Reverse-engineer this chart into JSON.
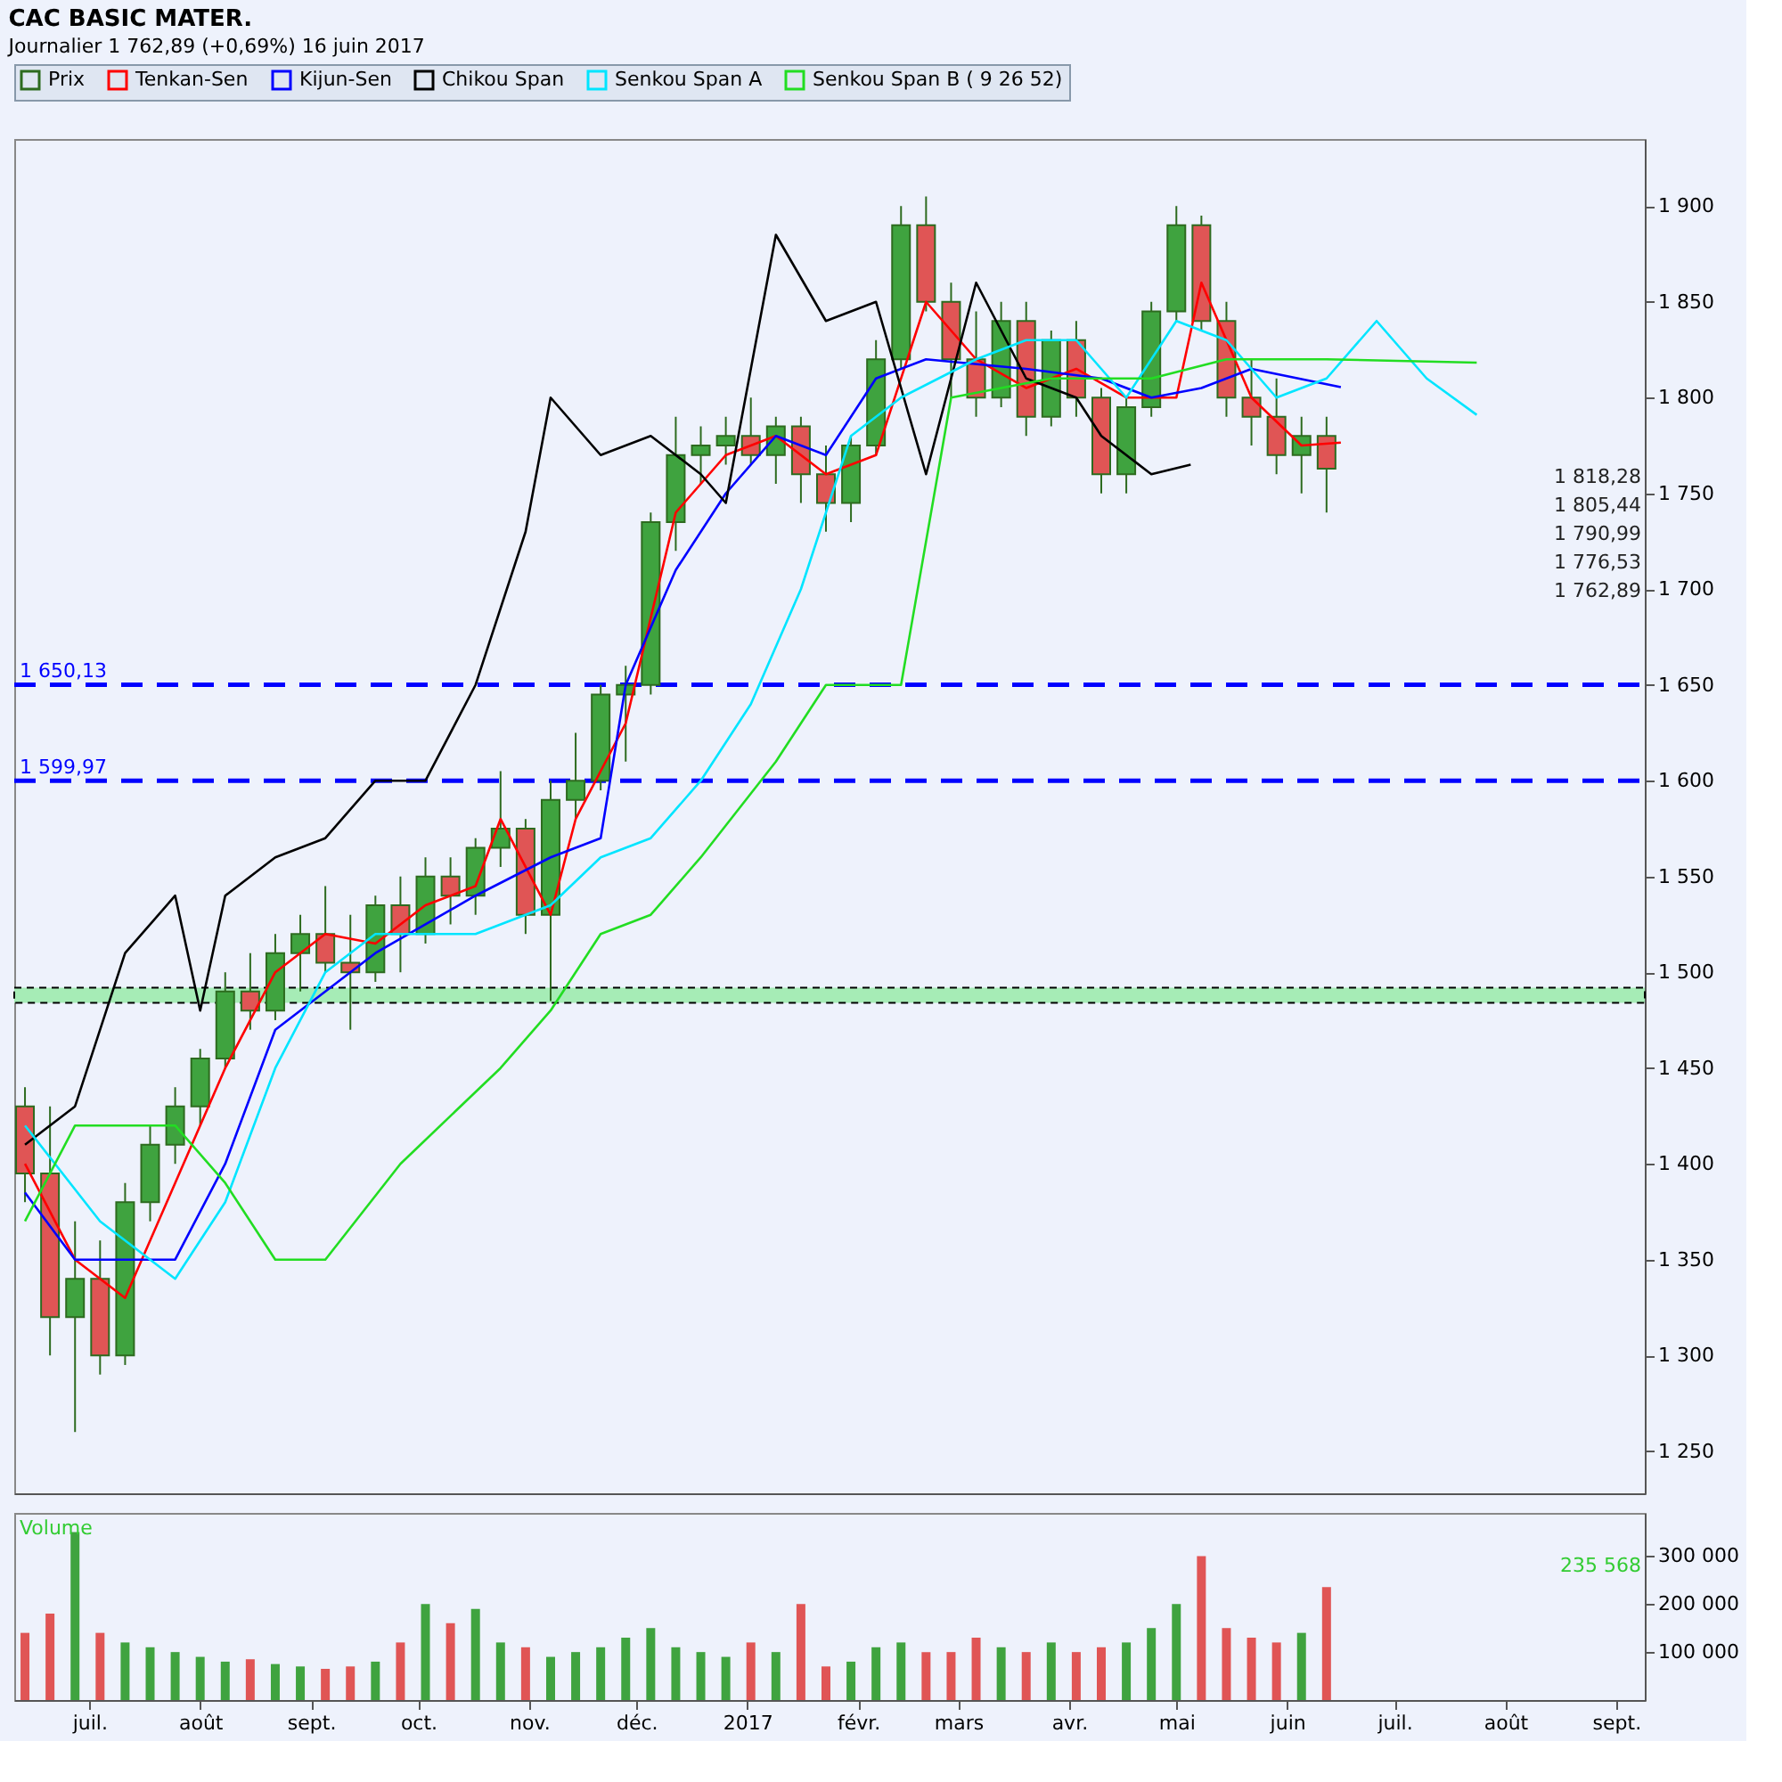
{
  "chart_data": [
    {
      "type": "candlestick",
      "title": "CAC BASIC MATER.",
      "subtitle": "Journalier   1 762,89 (+0,69%)   16 juin 2017",
      "series": [
        {
          "name": "Prix",
          "type": "candlestick",
          "color": "#2d6b1f",
          "x": [
            "2016-06-13",
            "2016-06-20",
            "2016-06-27",
            "2016-07-04",
            "2016-07-11",
            "2016-07-18",
            "2016-07-25",
            "2016-08-01",
            "2016-08-08",
            "2016-08-15",
            "2016-08-22",
            "2016-08-29",
            "2016-09-05",
            "2016-09-12",
            "2016-09-19",
            "2016-09-26",
            "2016-10-03",
            "2016-10-10",
            "2016-10-17",
            "2016-10-24",
            "2016-10-31",
            "2016-11-07",
            "2016-11-14",
            "2016-11-21",
            "2016-11-28",
            "2016-12-05",
            "2016-12-12",
            "2016-12-19",
            "2016-12-26",
            "2017-01-02",
            "2017-01-09",
            "2017-01-16",
            "2017-01-23",
            "2017-01-30",
            "2017-02-06",
            "2017-02-13",
            "2017-02-20",
            "2017-02-27",
            "2017-03-06",
            "2017-03-13",
            "2017-03-20",
            "2017-03-27",
            "2017-04-03",
            "2017-04-10",
            "2017-04-17",
            "2017-04-24",
            "2017-05-01",
            "2017-05-08",
            "2017-05-15",
            "2017-05-22",
            "2017-05-29",
            "2017-06-05",
            "2017-06-12"
          ],
          "ohlc": [
            [
              1430,
              1440,
              1380,
              1395
            ],
            [
              1395,
              1430,
              1300,
              1320
            ],
            [
              1320,
              1370,
              1260,
              1340
            ],
            [
              1340,
              1360,
              1290,
              1300
            ],
            [
              1300,
              1390,
              1295,
              1380
            ],
            [
              1380,
              1420,
              1370,
              1410
            ],
            [
              1410,
              1440,
              1400,
              1430
            ],
            [
              1430,
              1460,
              1420,
              1455
            ],
            [
              1455,
              1500,
              1450,
              1490
            ],
            [
              1490,
              1510,
              1470,
              1480
            ],
            [
              1480,
              1520,
              1475,
              1510
            ],
            [
              1510,
              1530,
              1490,
              1520
            ],
            [
              1520,
              1545,
              1500,
              1505
            ],
            [
              1505,
              1530,
              1470,
              1500
            ],
            [
              1500,
              1540,
              1495,
              1535
            ],
            [
              1535,
              1550,
              1500,
              1520
            ],
            [
              1520,
              1560,
              1515,
              1550
            ],
            [
              1550,
              1560,
              1525,
              1540
            ],
            [
              1540,
              1570,
              1530,
              1565
            ],
            [
              1565,
              1605,
              1555,
              1575
            ],
            [
              1575,
              1580,
              1520,
              1530
            ],
            [
              1530,
              1600,
              1485,
              1590
            ],
            [
              1590,
              1625,
              1580,
              1600
            ],
            [
              1600,
              1650,
              1595,
              1645
            ],
            [
              1645,
              1660,
              1610,
              1650
            ],
            [
              1650,
              1740,
              1645,
              1735
            ],
            [
              1735,
              1790,
              1720,
              1770
            ],
            [
              1770,
              1785,
              1755,
              1775
            ],
            [
              1775,
              1790,
              1765,
              1780
            ],
            [
              1780,
              1800,
              1765,
              1770
            ],
            [
              1770,
              1790,
              1755,
              1785
            ],
            [
              1785,
              1790,
              1745,
              1760
            ],
            [
              1760,
              1775,
              1730,
              1745
            ],
            [
              1745,
              1780,
              1735,
              1775
            ],
            [
              1775,
              1830,
              1770,
              1820
            ],
            [
              1820,
              1900,
              1815,
              1890
            ],
            [
              1890,
              1905,
              1845,
              1850
            ],
            [
              1850,
              1860,
              1800,
              1820
            ],
            [
              1820,
              1845,
              1790,
              1800
            ],
            [
              1800,
              1850,
              1795,
              1840
            ],
            [
              1840,
              1850,
              1780,
              1790
            ],
            [
              1790,
              1835,
              1785,
              1830
            ],
            [
              1830,
              1840,
              1790,
              1800
            ],
            [
              1800,
              1805,
              1750,
              1760
            ],
            [
              1760,
              1800,
              1750,
              1795
            ],
            [
              1795,
              1850,
              1790,
              1845
            ],
            [
              1845,
              1900,
              1840,
              1890
            ],
            [
              1890,
              1895,
              1835,
              1840
            ],
            [
              1840,
              1850,
              1790,
              1800
            ],
            [
              1800,
              1820,
              1775,
              1790
            ],
            [
              1790,
              1810,
              1760,
              1770
            ],
            [
              1770,
              1790,
              1750,
              1780
            ],
            [
              1780,
              1790,
              1740,
              1762.89
            ]
          ],
          "colors": [
            "#e05555",
            "#e05555",
            "#3fa33f",
            "#e05555",
            "#3fa33f",
            "#3fa33f",
            "#3fa33f",
            "#3fa33f",
            "#3fa33f",
            "#e05555",
            "#3fa33f",
            "#3fa33f",
            "#e05555",
            "#e05555",
            "#3fa33f",
            "#e05555",
            "#3fa33f",
            "#e05555",
            "#3fa33f",
            "#3fa33f",
            "#e05555",
            "#3fa33f",
            "#3fa33f",
            "#3fa33f",
            "#3fa33f",
            "#3fa33f",
            "#3fa33f",
            "#3fa33f",
            "#3fa33f",
            "#e05555",
            "#3fa33f",
            "#e05555",
            "#e05555",
            "#3fa33f",
            "#3fa33f",
            "#3fa33f",
            "#e05555",
            "#e05555",
            "#e05555",
            "#3fa33f",
            "#e05555",
            "#3fa33f",
            "#e05555",
            "#e05555",
            "#3fa33f",
            "#3fa33f",
            "#3fa33f",
            "#e05555",
            "#e05555",
            "#e05555",
            "#e05555",
            "#3fa33f",
            "#e05555"
          ]
        },
        {
          "name": "Tenkan-Sen",
          "type": "line",
          "color": "#ff0000",
          "x": [
            "2016-06-13",
            "2016-06-27",
            "2016-07-11",
            "2016-07-25",
            "2016-08-08",
            "2016-08-22",
            "2016-09-05",
            "2016-09-19",
            "2016-10-03",
            "2016-10-17",
            "2016-10-24",
            "2016-11-07",
            "2016-11-14",
            "2016-11-28",
            "2016-12-12",
            "2016-12-26",
            "2017-01-09",
            "2017-01-23",
            "2017-02-06",
            "2017-02-20",
            "2017-03-06",
            "2017-03-20",
            "2017-04-03",
            "2017-04-17",
            "2017-05-01",
            "2017-05-08",
            "2017-05-22",
            "2017-06-05",
            "2017-06-16"
          ],
          "values": [
            1400,
            1350,
            1330,
            1390,
            1450,
            1500,
            1520,
            1515,
            1535,
            1545,
            1580,
            1530,
            1580,
            1630,
            1740,
            1770,
            1780,
            1760,
            1770,
            1850,
            1820,
            1805,
            1815,
            1800,
            1800,
            1860,
            1800,
            1775,
            1776.53
          ]
        },
        {
          "name": "Kijun-Sen",
          "type": "line",
          "color": "#0000ff",
          "x": [
            "2016-06-13",
            "2016-06-27",
            "2016-07-25",
            "2016-08-08",
            "2016-08-22",
            "2016-09-19",
            "2016-10-17",
            "2016-11-07",
            "2016-11-21",
            "2016-11-28",
            "2016-12-12",
            "2016-12-26",
            "2017-01-09",
            "2017-01-23",
            "2017-02-06",
            "2017-02-20",
            "2017-03-20",
            "2017-04-10",
            "2017-04-24",
            "2017-05-08",
            "2017-05-22",
            "2017-06-16"
          ],
          "values": [
            1385,
            1350,
            1350,
            1400,
            1470,
            1510,
            1540,
            1560,
            1570,
            1650,
            1710,
            1750,
            1780,
            1770,
            1810,
            1820,
            1815,
            1810,
            1800,
            1805,
            1815,
            1805.44
          ]
        },
        {
          "name": "Chikou Span",
          "type": "line",
          "color": "#000000",
          "x": [
            "2016-06-13",
            "2016-06-27",
            "2016-07-11",
            "2016-07-25",
            "2016-08-01",
            "2016-08-08",
            "2016-08-22",
            "2016-09-05",
            "2016-09-19",
            "2016-10-03",
            "2016-10-17",
            "2016-10-31",
            "2016-11-07",
            "2016-11-21",
            "2016-12-05",
            "2016-12-19",
            "2016-12-26",
            "2017-01-09",
            "2017-01-23",
            "2017-02-06",
            "2017-02-20",
            "2017-03-06",
            "2017-03-20",
            "2017-04-03",
            "2017-04-10",
            "2017-04-24",
            "2017-05-05"
          ],
          "values": [
            1410,
            1430,
            1510,
            1540,
            1480,
            1540,
            1560,
            1570,
            1600,
            1600,
            1650,
            1730,
            1800,
            1770,
            1780,
            1760,
            1745,
            1885,
            1840,
            1850,
            1760,
            1860,
            1810,
            1800,
            1780,
            1760,
            1765
          ]
        },
        {
          "name": "Senkou Span A",
          "type": "line",
          "color": "#00e5ff",
          "x": [
            "2016-06-13",
            "2016-07-04",
            "2016-07-25",
            "2016-08-08",
            "2016-08-22",
            "2016-09-05",
            "2016-09-19",
            "2016-10-17",
            "2016-11-07",
            "2016-11-21",
            "2016-12-05",
            "2016-12-19",
            "2017-01-02",
            "2017-01-16",
            "2017-01-30",
            "2017-02-13",
            "2017-03-06",
            "2017-03-20",
            "2017-04-03",
            "2017-04-17",
            "2017-05-01",
            "2017-05-15",
            "2017-05-29",
            "2017-06-12",
            "2017-06-26",
            "2017-07-10",
            "2017-07-24"
          ],
          "values": [
            1420,
            1370,
            1340,
            1380,
            1450,
            1500,
            1520,
            1520,
            1535,
            1560,
            1570,
            1600,
            1640,
            1700,
            1780,
            1800,
            1820,
            1830,
            1830,
            1800,
            1840,
            1830,
            1800,
            1810,
            1840,
            1810,
            1790.99
          ]
        },
        {
          "name": "Senkou Span B ( 9 26 52)",
          "type": "line",
          "color": "#22dd22",
          "x": [
            "2016-06-13",
            "2016-06-27",
            "2016-07-25",
            "2016-08-08",
            "2016-08-22",
            "2016-09-05",
            "2016-09-26",
            "2016-10-24",
            "2016-11-07",
            "2016-11-21",
            "2016-12-05",
            "2016-12-19",
            "2017-01-09",
            "2017-01-23",
            "2017-02-13",
            "2017-02-27",
            "2017-03-27",
            "2017-04-24",
            "2017-05-15",
            "2017-06-12",
            "2017-07-24"
          ],
          "values": [
            1370,
            1420,
            1420,
            1390,
            1350,
            1350,
            1400,
            1450,
            1480,
            1520,
            1530,
            1560,
            1610,
            1650,
            1650,
            1800,
            1810,
            1810,
            1820,
            1820,
            1818.28
          ]
        }
      ],
      "xlim": [
        "2016-06-10",
        "2017-09-09"
      ],
      "ylim": [
        1228,
        1935
      ],
      "yticks": [
        {
          "value": 1250,
          "label": "1 250"
        },
        {
          "value": 1300,
          "label": "1 300"
        },
        {
          "value": 1350,
          "label": "1 350"
        },
        {
          "value": 1400,
          "label": "1 400"
        },
        {
          "value": 1450,
          "label": "1 450"
        },
        {
          "value": 1500,
          "label": "1 500"
        },
        {
          "value": 1550,
          "label": "1 550"
        },
        {
          "value": 1600,
          "label": "1 600"
        },
        {
          "value": 1650,
          "label": "1 650"
        },
        {
          "value": 1700,
          "label": "1 700"
        },
        {
          "value": 1750,
          "label": "1 750"
        },
        {
          "value": 1800,
          "label": "1 800"
        },
        {
          "value": 1850,
          "label": "1 850"
        },
        {
          "value": 1900,
          "label": "1 900"
        }
      ],
      "ref_lines": [
        {
          "axis": "y",
          "value": 1650.13,
          "label": "1 650,13",
          "color": "#0000ff",
          "line_style": "dashed"
        },
        {
          "axis": "y",
          "value": 1599.97,
          "label": "1 599,97",
          "color": "#0000ff",
          "line_style": "dashed"
        }
      ],
      "bands": [
        {
          "axis": "y",
          "from": 1484,
          "to": 1492,
          "color": "#a6ecb6"
        }
      ],
      "annotations": [
        "1 818,28",
        "1 805,44",
        "1 790,99",
        "1 776,53",
        "1 762,89"
      ],
      "legend": "top left",
      "tick_labels": "y"
    },
    {
      "type": "bar",
      "x": [
        "2016-06-13",
        "2016-06-20",
        "2016-06-27",
        "2016-07-04",
        "2016-07-11",
        "2016-07-18",
        "2016-07-25",
        "2016-08-01",
        "2016-08-08",
        "2016-08-15",
        "2016-08-22",
        "2016-08-29",
        "2016-09-05",
        "2016-09-12",
        "2016-09-19",
        "2016-09-26",
        "2016-10-03",
        "2016-10-10",
        "2016-10-17",
        "2016-10-24",
        "2016-10-31",
        "2016-11-07",
        "2016-11-14",
        "2016-11-21",
        "2016-11-28",
        "2016-12-05",
        "2016-12-12",
        "2016-12-19",
        "2016-12-26",
        "2017-01-02",
        "2017-01-09",
        "2017-01-16",
        "2017-01-23",
        "2017-01-30",
        "2017-02-06",
        "2017-02-13",
        "2017-02-20",
        "2017-02-27",
        "2017-03-06",
        "2017-03-13",
        "2017-03-20",
        "2017-03-27",
        "2017-04-03",
        "2017-04-10",
        "2017-04-17",
        "2017-04-24",
        "2017-05-01",
        "2017-05-08",
        "2017-05-15",
        "2017-05-22",
        "2017-05-29",
        "2017-06-05",
        "2017-06-12"
      ],
      "series": [
        {
          "name": "Volume",
          "values": [
            140000,
            180000,
            350000,
            140000,
            120000,
            110000,
            100000,
            90000,
            80000,
            85000,
            75000,
            70000,
            65000,
            70000,
            80000,
            120000,
            200000,
            160000,
            190000,
            120000,
            110000,
            90000,
            100000,
            110000,
            130000,
            150000,
            110000,
            100000,
            90000,
            120000,
            100000,
            200000,
            70000,
            80000,
            110000,
            120000,
            100000,
            100000,
            130000,
            110000,
            100000,
            120000,
            100000,
            110000,
            120000,
            150000,
            200000,
            300000,
            150000,
            130000,
            120000,
            140000,
            235568
          ]
        }
      ],
      "colors": [
        "#e05555",
        "#e05555",
        "#3fa33f",
        "#e05555",
        "#3fa33f",
        "#3fa33f",
        "#3fa33f",
        "#3fa33f",
        "#3fa33f",
        "#e05555",
        "#3fa33f",
        "#3fa33f",
        "#e05555",
        "#e05555",
        "#3fa33f",
        "#e05555",
        "#3fa33f",
        "#e05555",
        "#3fa33f",
        "#3fa33f",
        "#e05555",
        "#3fa33f",
        "#3fa33f",
        "#3fa33f",
        "#3fa33f",
        "#3fa33f",
        "#3fa33f",
        "#3fa33f",
        "#3fa33f",
        "#e05555",
        "#3fa33f",
        "#e05555",
        "#e05555",
        "#3fa33f",
        "#3fa33f",
        "#3fa33f",
        "#e05555",
        "#e05555",
        "#e05555",
        "#3fa33f",
        "#e05555",
        "#3fa33f",
        "#e05555",
        "#e05555",
        "#3fa33f",
        "#3fa33f",
        "#3fa33f",
        "#e05555",
        "#e05555",
        "#e05555",
        "#e05555",
        "#3fa33f",
        "#e05555"
      ],
      "xlim": [
        "2016-06-10",
        "2017-09-09"
      ],
      "xticks": [
        {
          "value": "2016-07-01",
          "label": "juil."
        },
        {
          "value": "2016-08-01",
          "label": "août"
        },
        {
          "value": "2016-09-01",
          "label": "sept."
        },
        {
          "value": "2016-10-01",
          "label": "oct."
        },
        {
          "value": "2016-11-01",
          "label": "nov."
        },
        {
          "value": "2016-12-01",
          "label": "déc."
        },
        {
          "value": "2017-01-01",
          "label": "2017"
        },
        {
          "value": "2017-02-01",
          "label": "févr."
        },
        {
          "value": "2017-03-01",
          "label": "mars"
        },
        {
          "value": "2017-04-01",
          "label": "avr."
        },
        {
          "value": "2017-05-01",
          "label": "mai"
        },
        {
          "value": "2017-06-01",
          "label": "juin"
        },
        {
          "value": "2017-07-01",
          "label": "juil."
        },
        {
          "value": "2017-08-01",
          "label": "août"
        },
        {
          "value": "2017-09-01",
          "label": "sept."
        }
      ],
      "ylim": [
        0,
        390000
      ],
      "yticks": [
        {
          "value": 100000,
          "label": "100 000"
        },
        {
          "value": 200000,
          "label": "200 000"
        },
        {
          "value": 300000,
          "label": "300 000"
        }
      ],
      "annotations": [
        "235 568"
      ]
    }
  ]
}
